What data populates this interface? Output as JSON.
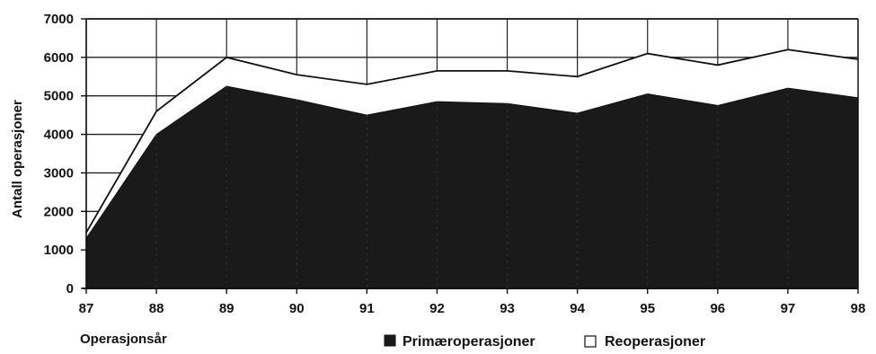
{
  "chart_data": {
    "type": "area",
    "stacked": true,
    "x": [
      "87",
      "88",
      "89",
      "90",
      "91",
      "92",
      "93",
      "94",
      "95",
      "96",
      "97",
      "98"
    ],
    "series": [
      {
        "name": "Primæroperasjoner",
        "color": "#1a1a1a",
        "values": [
          1300,
          4000,
          5250,
          4900,
          4500,
          4850,
          4800,
          4550,
          5050,
          4750,
          5200,
          4950
        ]
      },
      {
        "name": "Reoperasjoner",
        "color": "#ffffff",
        "values": [
          150,
          600,
          750,
          650,
          800,
          800,
          850,
          950,
          1050,
          1050,
          1000,
          1000
        ]
      }
    ],
    "xlabel": "Operasjonsår",
    "ylabel": "Antall operasjoner",
    "ylim": [
      0,
      7000
    ],
    "yticks": [
      "0",
      "1000",
      "2000",
      "3000",
      "4000",
      "5000",
      "6000",
      "7000"
    ],
    "grid": true,
    "legend_position": "bottom"
  }
}
